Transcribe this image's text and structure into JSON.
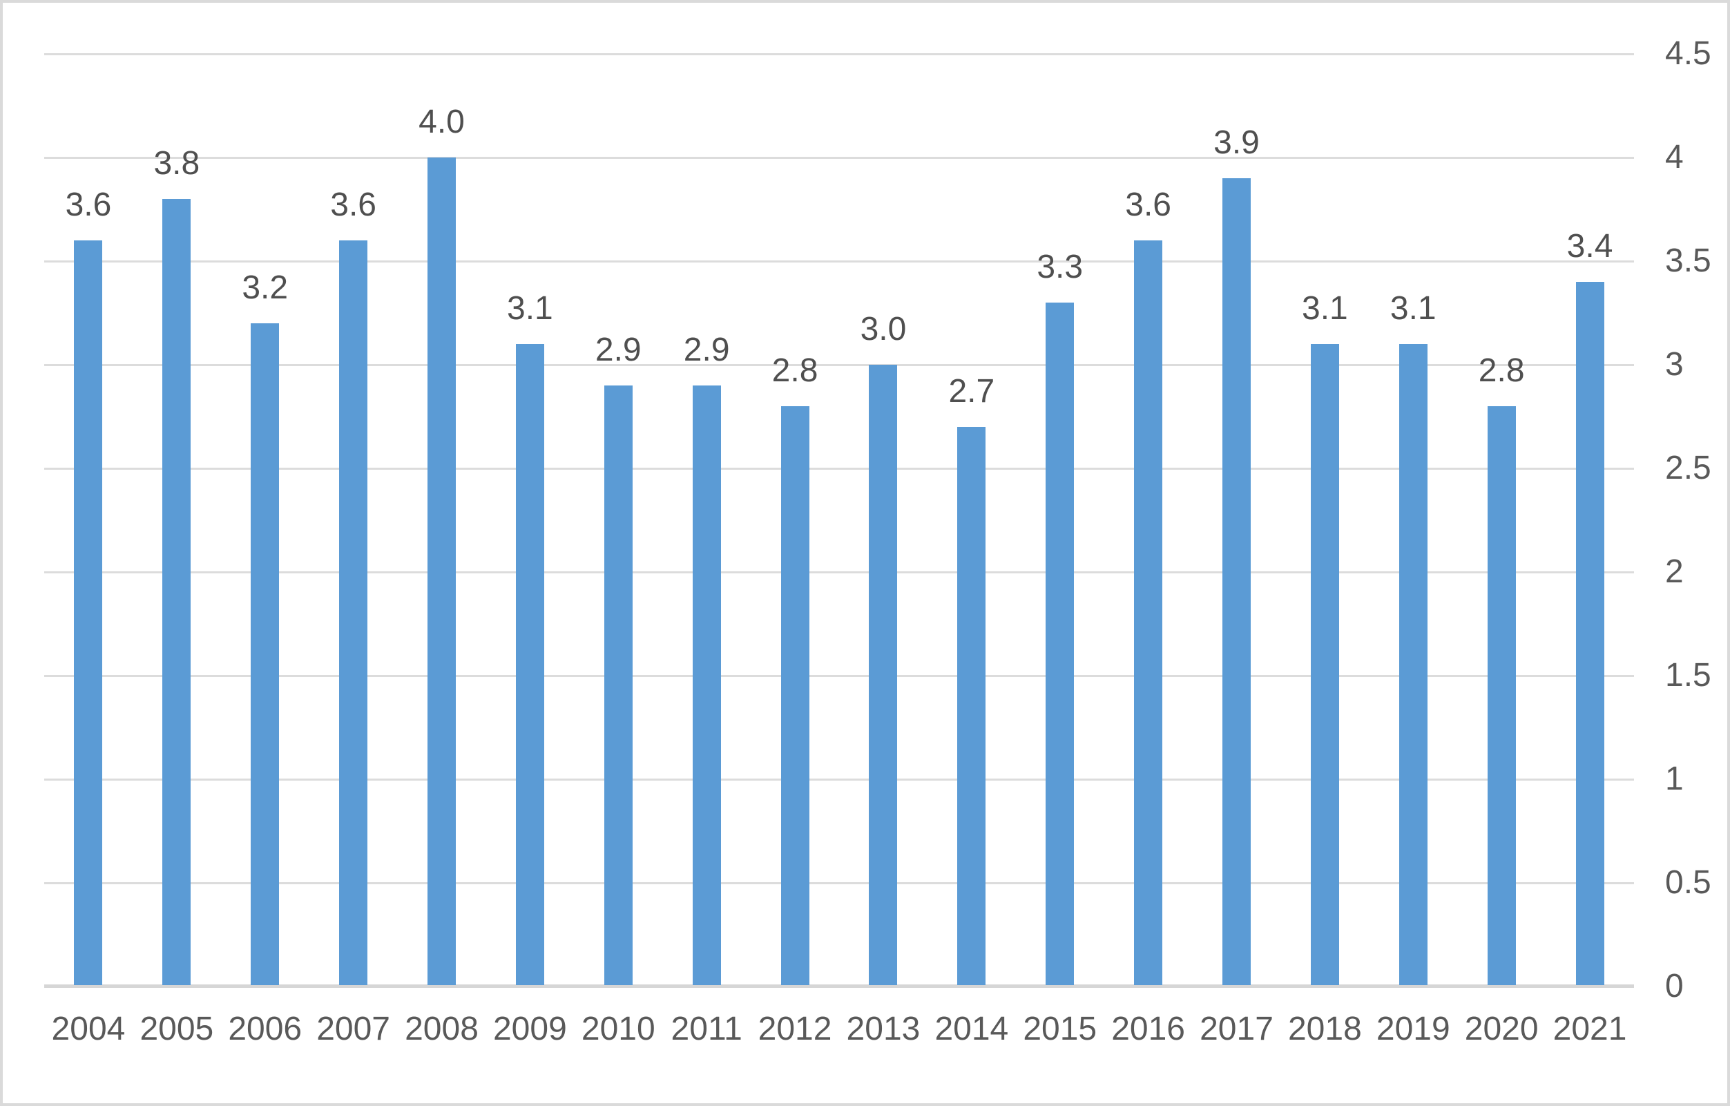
{
  "chart_data": {
    "type": "bar",
    "title": "",
    "xlabel": "",
    "ylabel": "",
    "categories": [
      "2004",
      "2005",
      "2006",
      "2007",
      "2008",
      "2009",
      "2010",
      "2011",
      "2012",
      "2013",
      "2014",
      "2015",
      "2016",
      "2017",
      "2018",
      "2019",
      "2020",
      "2021"
    ],
    "values": [
      3.6,
      3.8,
      3.2,
      3.6,
      4.0,
      3.1,
      2.9,
      2.9,
      2.8,
      3.0,
      2.7,
      3.3,
      3.6,
      3.9,
      3.1,
      3.1,
      2.8,
      3.4
    ],
    "data_labels": [
      "3.6",
      "3.8",
      "3.2",
      "3.6",
      "4.0",
      "3.1",
      "2.9",
      "2.9",
      "2.8",
      "3.0",
      "2.7",
      "3.3",
      "3.6",
      "3.9",
      "3.1",
      "3.1",
      "2.8",
      "3.4"
    ],
    "ylim": [
      0,
      4.5
    ],
    "ytick_interval": 0.5,
    "ytick_labels": [
      "0",
      "0.5",
      "1",
      "1.5",
      "2",
      "2.5",
      "3",
      "3.5",
      "4",
      "4.5"
    ],
    "yaxis_side": "right",
    "grid": "horizontal",
    "legend": "none",
    "colors": {
      "bar": "#5b9bd5",
      "gridline": "#dcdcdc",
      "axis_line": "#d6d6d6",
      "tick_text": "#595959",
      "data_label_text": "#4f4f4f",
      "frame_border": "#dadada",
      "background": "#ffffff"
    }
  }
}
